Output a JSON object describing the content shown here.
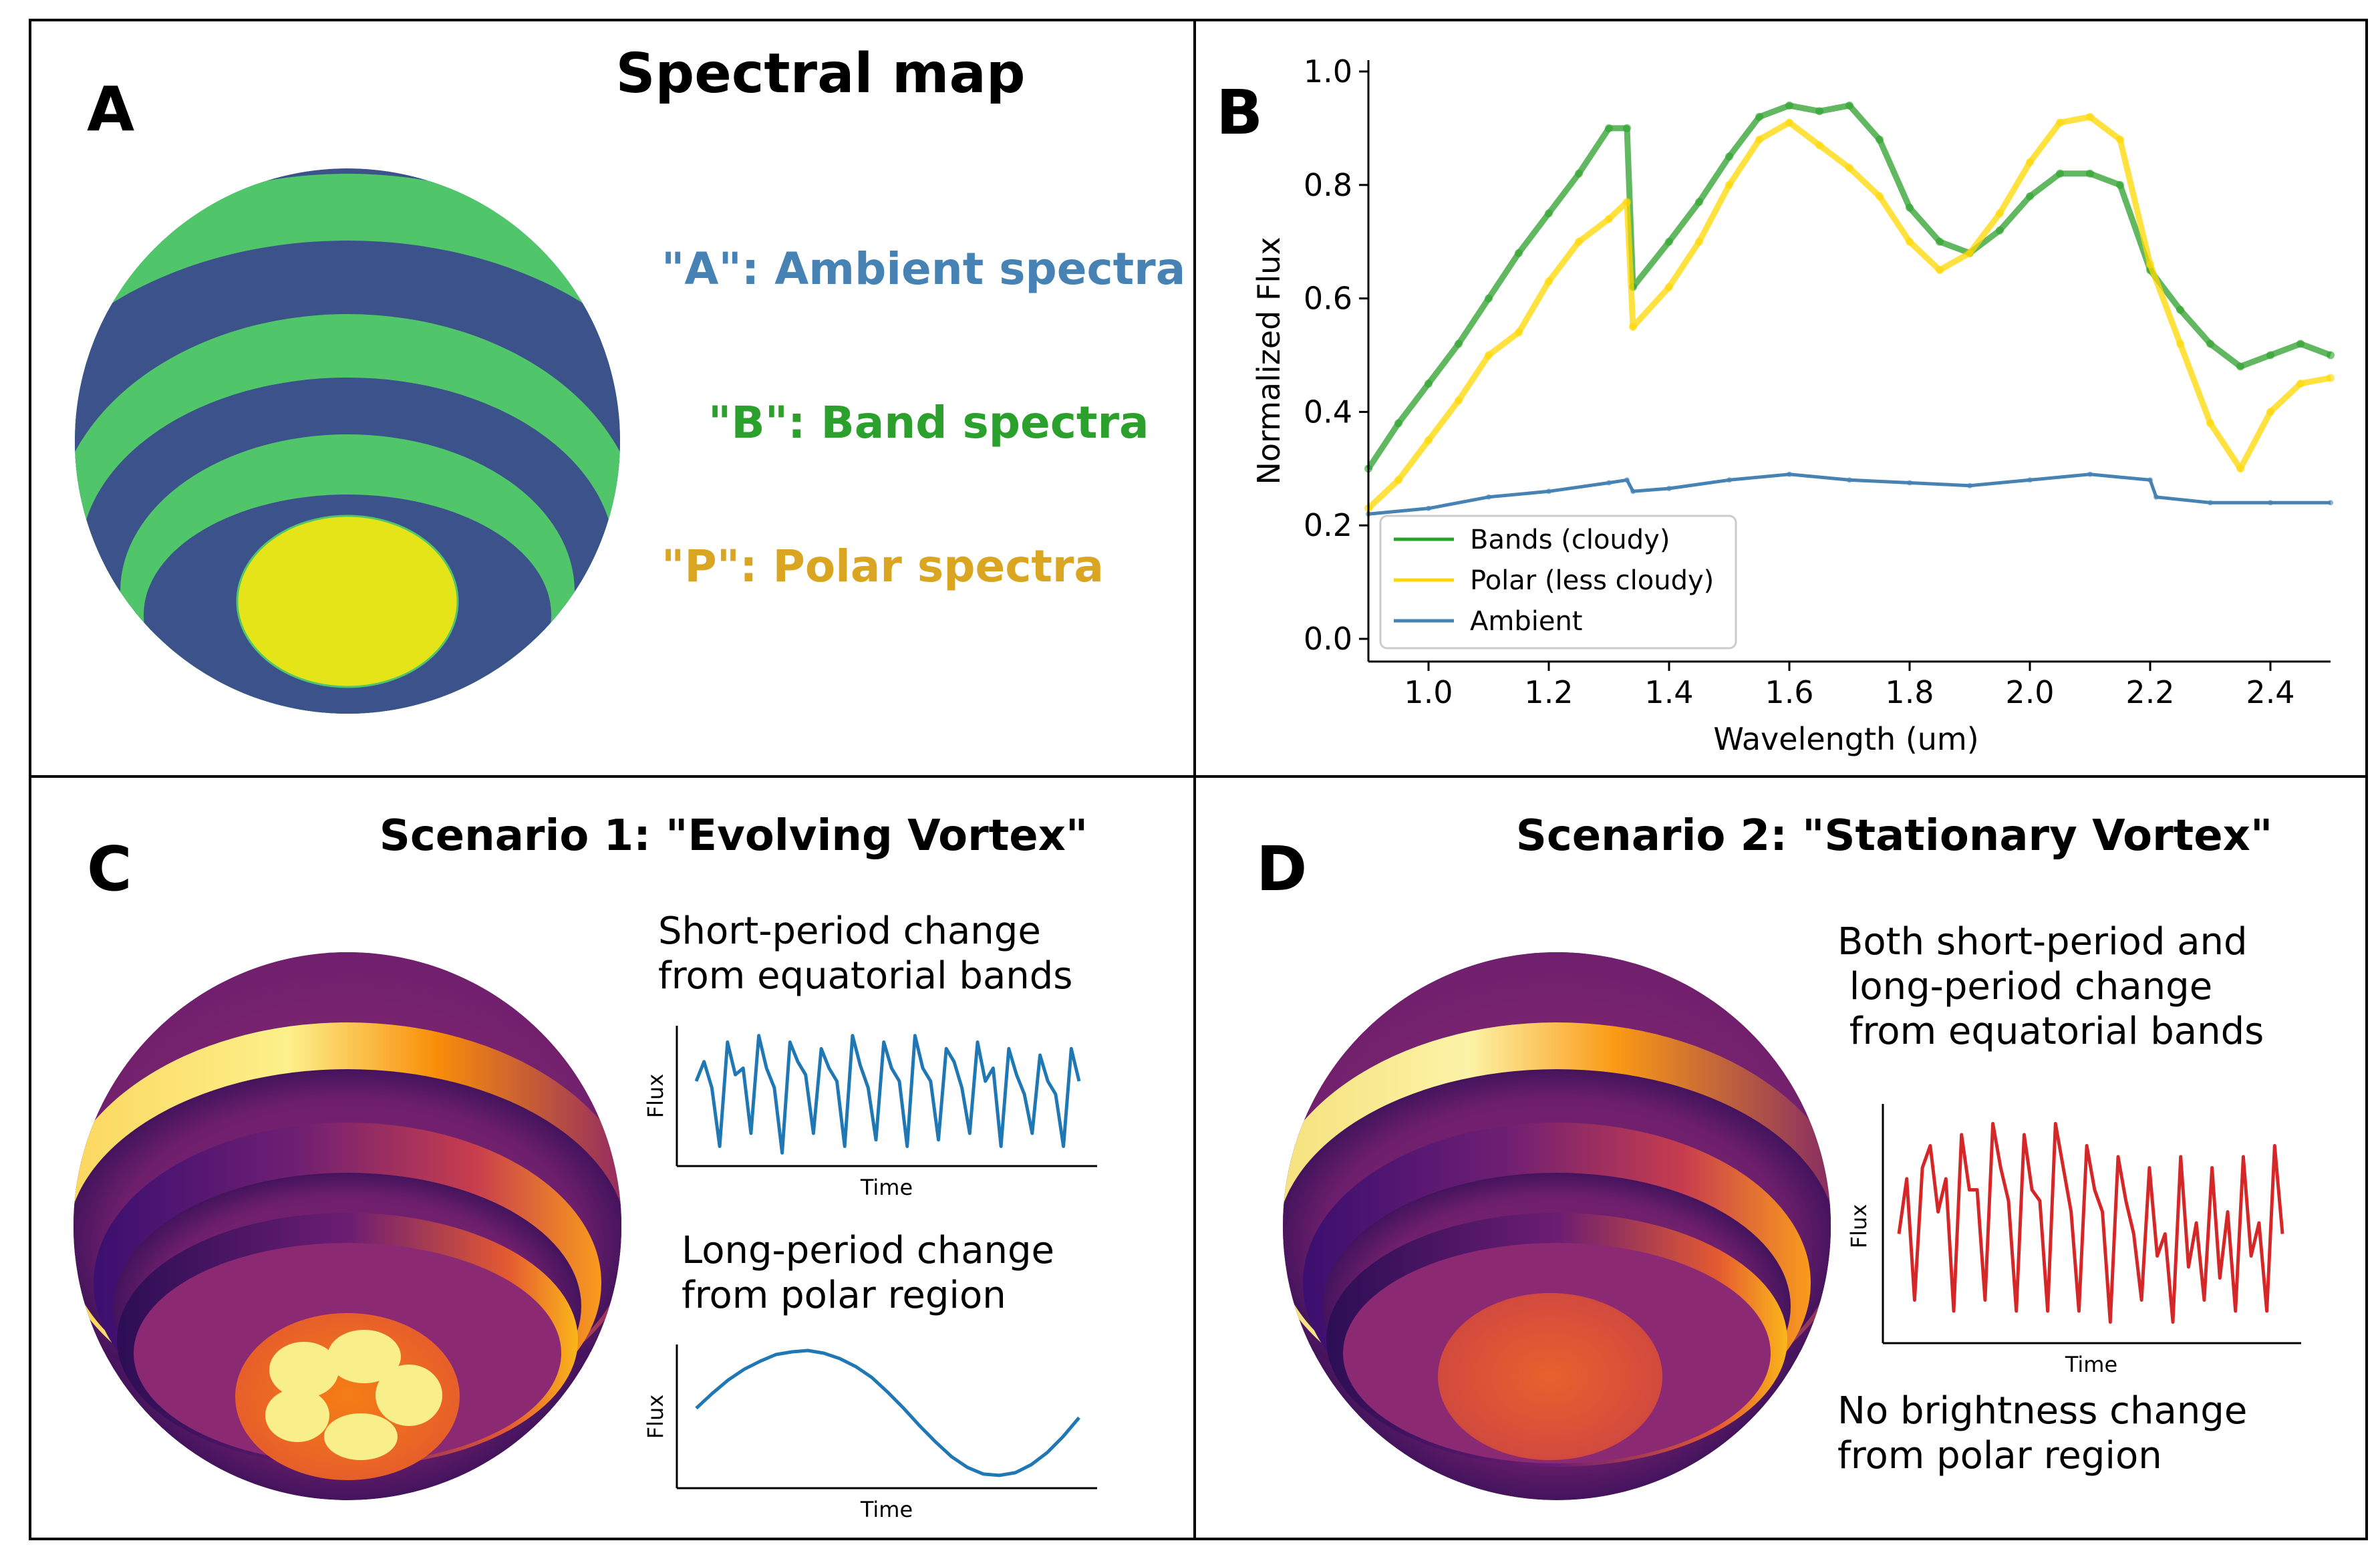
{
  "panel_a": {
    "letter": "A",
    "title": "Spectral map",
    "labels": {
      "ambient": "\"A\": Ambient spectra",
      "band": "\"B\": Band spectra",
      "polar": "\"P\": Polar spectra"
    },
    "colors": {
      "ambient": "#3b528b",
      "band": "#51c56a",
      "polar": "#e5e419",
      "ambient_label": "#4682b4",
      "band_label": "#2ca02c",
      "polar_label": "#daa520"
    }
  },
  "panel_b": {
    "letter": "B"
  },
  "panel_c": {
    "letter": "C",
    "title": "Scenario 1: \"Evolving Vortex\"",
    "text_short": [
      "Short-period change",
      "from equatorial bands"
    ],
    "text_long": [
      "Long-period change",
      "from polar region"
    ],
    "xlabel": "Time",
    "ylabel": "Flux",
    "line_color": "#1f77b4"
  },
  "panel_d": {
    "letter": "D",
    "title": "Scenario 2: \"Stationary Vortex\"",
    "text_top": [
      "Both short-period and",
      " long-period change",
      " from equatorial bands"
    ],
    "text_bottom": [
      "No brightness change",
      "from polar region"
    ],
    "xlabel": "Time",
    "ylabel": "Flux",
    "line_color": "#d62728"
  },
  "chart_data": [
    {
      "type": "line",
      "title": "",
      "xlabel": "Wavelength (um)",
      "ylabel": "Normalized Flux",
      "xlim": [
        0.9,
        2.5
      ],
      "ylim": [
        -0.04,
        1.02
      ],
      "xticks": [
        "1.0",
        "1.2",
        "1.4",
        "1.6",
        "1.8",
        "2.0",
        "2.2",
        "2.4"
      ],
      "yticks": [
        "0.0",
        "0.2",
        "0.4",
        "0.6",
        "0.8",
        "1.0"
      ],
      "legend_position": "lower-left",
      "grid": false,
      "series": [
        {
          "name": "Bands (cloudy)",
          "color": "#2ca02c",
          "x": [
            0.9,
            0.95,
            1.0,
            1.05,
            1.1,
            1.15,
            1.2,
            1.25,
            1.3,
            1.33,
            1.34,
            1.4,
            1.45,
            1.5,
            1.55,
            1.6,
            1.65,
            1.7,
            1.75,
            1.8,
            1.85,
            1.9,
            1.95,
            2.0,
            2.05,
            2.1,
            2.15,
            2.2,
            2.25,
            2.3,
            2.35,
            2.4,
            2.45,
            2.5
          ],
          "y": [
            0.3,
            0.38,
            0.45,
            0.52,
            0.6,
            0.68,
            0.75,
            0.82,
            0.9,
            0.9,
            0.62,
            0.7,
            0.77,
            0.85,
            0.92,
            0.94,
            0.93,
            0.94,
            0.88,
            0.76,
            0.7,
            0.68,
            0.72,
            0.78,
            0.82,
            0.82,
            0.8,
            0.65,
            0.58,
            0.52,
            0.48,
            0.5,
            0.52,
            0.5
          ]
        },
        {
          "name": "Polar (less cloudy)",
          "color": "#ffd700",
          "x": [
            0.9,
            0.95,
            1.0,
            1.05,
            1.1,
            1.15,
            1.2,
            1.25,
            1.3,
            1.33,
            1.34,
            1.4,
            1.45,
            1.5,
            1.55,
            1.6,
            1.65,
            1.7,
            1.75,
            1.8,
            1.85,
            1.9,
            1.95,
            2.0,
            2.05,
            2.1,
            2.15,
            2.2,
            2.25,
            2.3,
            2.35,
            2.4,
            2.45,
            2.5
          ],
          "y": [
            0.23,
            0.28,
            0.35,
            0.42,
            0.5,
            0.54,
            0.63,
            0.7,
            0.74,
            0.77,
            0.55,
            0.62,
            0.7,
            0.8,
            0.88,
            0.91,
            0.87,
            0.83,
            0.78,
            0.7,
            0.65,
            0.68,
            0.75,
            0.84,
            0.91,
            0.92,
            0.88,
            0.66,
            0.52,
            0.38,
            0.3,
            0.4,
            0.45,
            0.46
          ]
        },
        {
          "name": "Ambient",
          "color": "#4682b4",
          "x": [
            0.9,
            1.0,
            1.1,
            1.2,
            1.3,
            1.33,
            1.34,
            1.4,
            1.5,
            1.6,
            1.7,
            1.8,
            1.9,
            2.0,
            2.1,
            2.2,
            2.21,
            2.3,
            2.4,
            2.5
          ],
          "y": [
            0.22,
            0.23,
            0.25,
            0.26,
            0.275,
            0.28,
            0.26,
            0.265,
            0.28,
            0.29,
            0.28,
            0.275,
            0.27,
            0.28,
            0.29,
            0.28,
            0.25,
            0.24,
            0.24,
            0.24
          ]
        }
      ]
    },
    {
      "type": "line",
      "title": "",
      "xlabel": "Time",
      "ylabel": "Flux",
      "series": [
        {
          "name": "",
          "color": "#1f77b4",
          "values": [
            0.6,
            0.75,
            0.55,
            0.1,
            0.9,
            0.65,
            0.7,
            0.2,
            0.95,
            0.7,
            0.55,
            0.05,
            0.9,
            0.75,
            0.65,
            0.2,
            0.85,
            0.7,
            0.6,
            0.1,
            0.95,
            0.72,
            0.55,
            0.15,
            0.9,
            0.7,
            0.6,
            0.1,
            0.95,
            0.7,
            0.6,
            0.15,
            0.85,
            0.75,
            0.55,
            0.2,
            0.9,
            0.6,
            0.7,
            0.1,
            0.85,
            0.65,
            0.5,
            0.2,
            0.8,
            0.6,
            0.5,
            0.1,
            0.85,
            0.6
          ]
        }
      ]
    },
    {
      "type": "line",
      "title": "",
      "xlabel": "Time",
      "ylabel": "Flux",
      "series": [
        {
          "name": "",
          "color": "#1f77b4",
          "values": [
            0.55,
            0.66,
            0.76,
            0.84,
            0.9,
            0.95,
            0.97,
            0.98,
            0.96,
            0.92,
            0.86,
            0.78,
            0.67,
            0.55,
            0.42,
            0.3,
            0.19,
            0.11,
            0.06,
            0.05,
            0.07,
            0.13,
            0.22,
            0.34,
            0.48
          ]
        }
      ]
    },
    {
      "type": "line",
      "title": "",
      "xlabel": "Time",
      "ylabel": "Flux",
      "series": [
        {
          "name": "",
          "color": "#d62728",
          "values": [
            0.45,
            0.7,
            0.15,
            0.75,
            0.85,
            0.55,
            0.7,
            0.1,
            0.9,
            0.65,
            0.65,
            0.15,
            0.95,
            0.75,
            0.6,
            0.1,
            0.9,
            0.65,
            0.6,
            0.1,
            0.95,
            0.75,
            0.55,
            0.1,
            0.85,
            0.65,
            0.55,
            0.05,
            0.8,
            0.6,
            0.45,
            0.15,
            0.75,
            0.35,
            0.45,
            0.05,
            0.8,
            0.3,
            0.5,
            0.15,
            0.75,
            0.25,
            0.55,
            0.1,
            0.8,
            0.35,
            0.5,
            0.1,
            0.85,
            0.45
          ]
        }
      ]
    }
  ]
}
